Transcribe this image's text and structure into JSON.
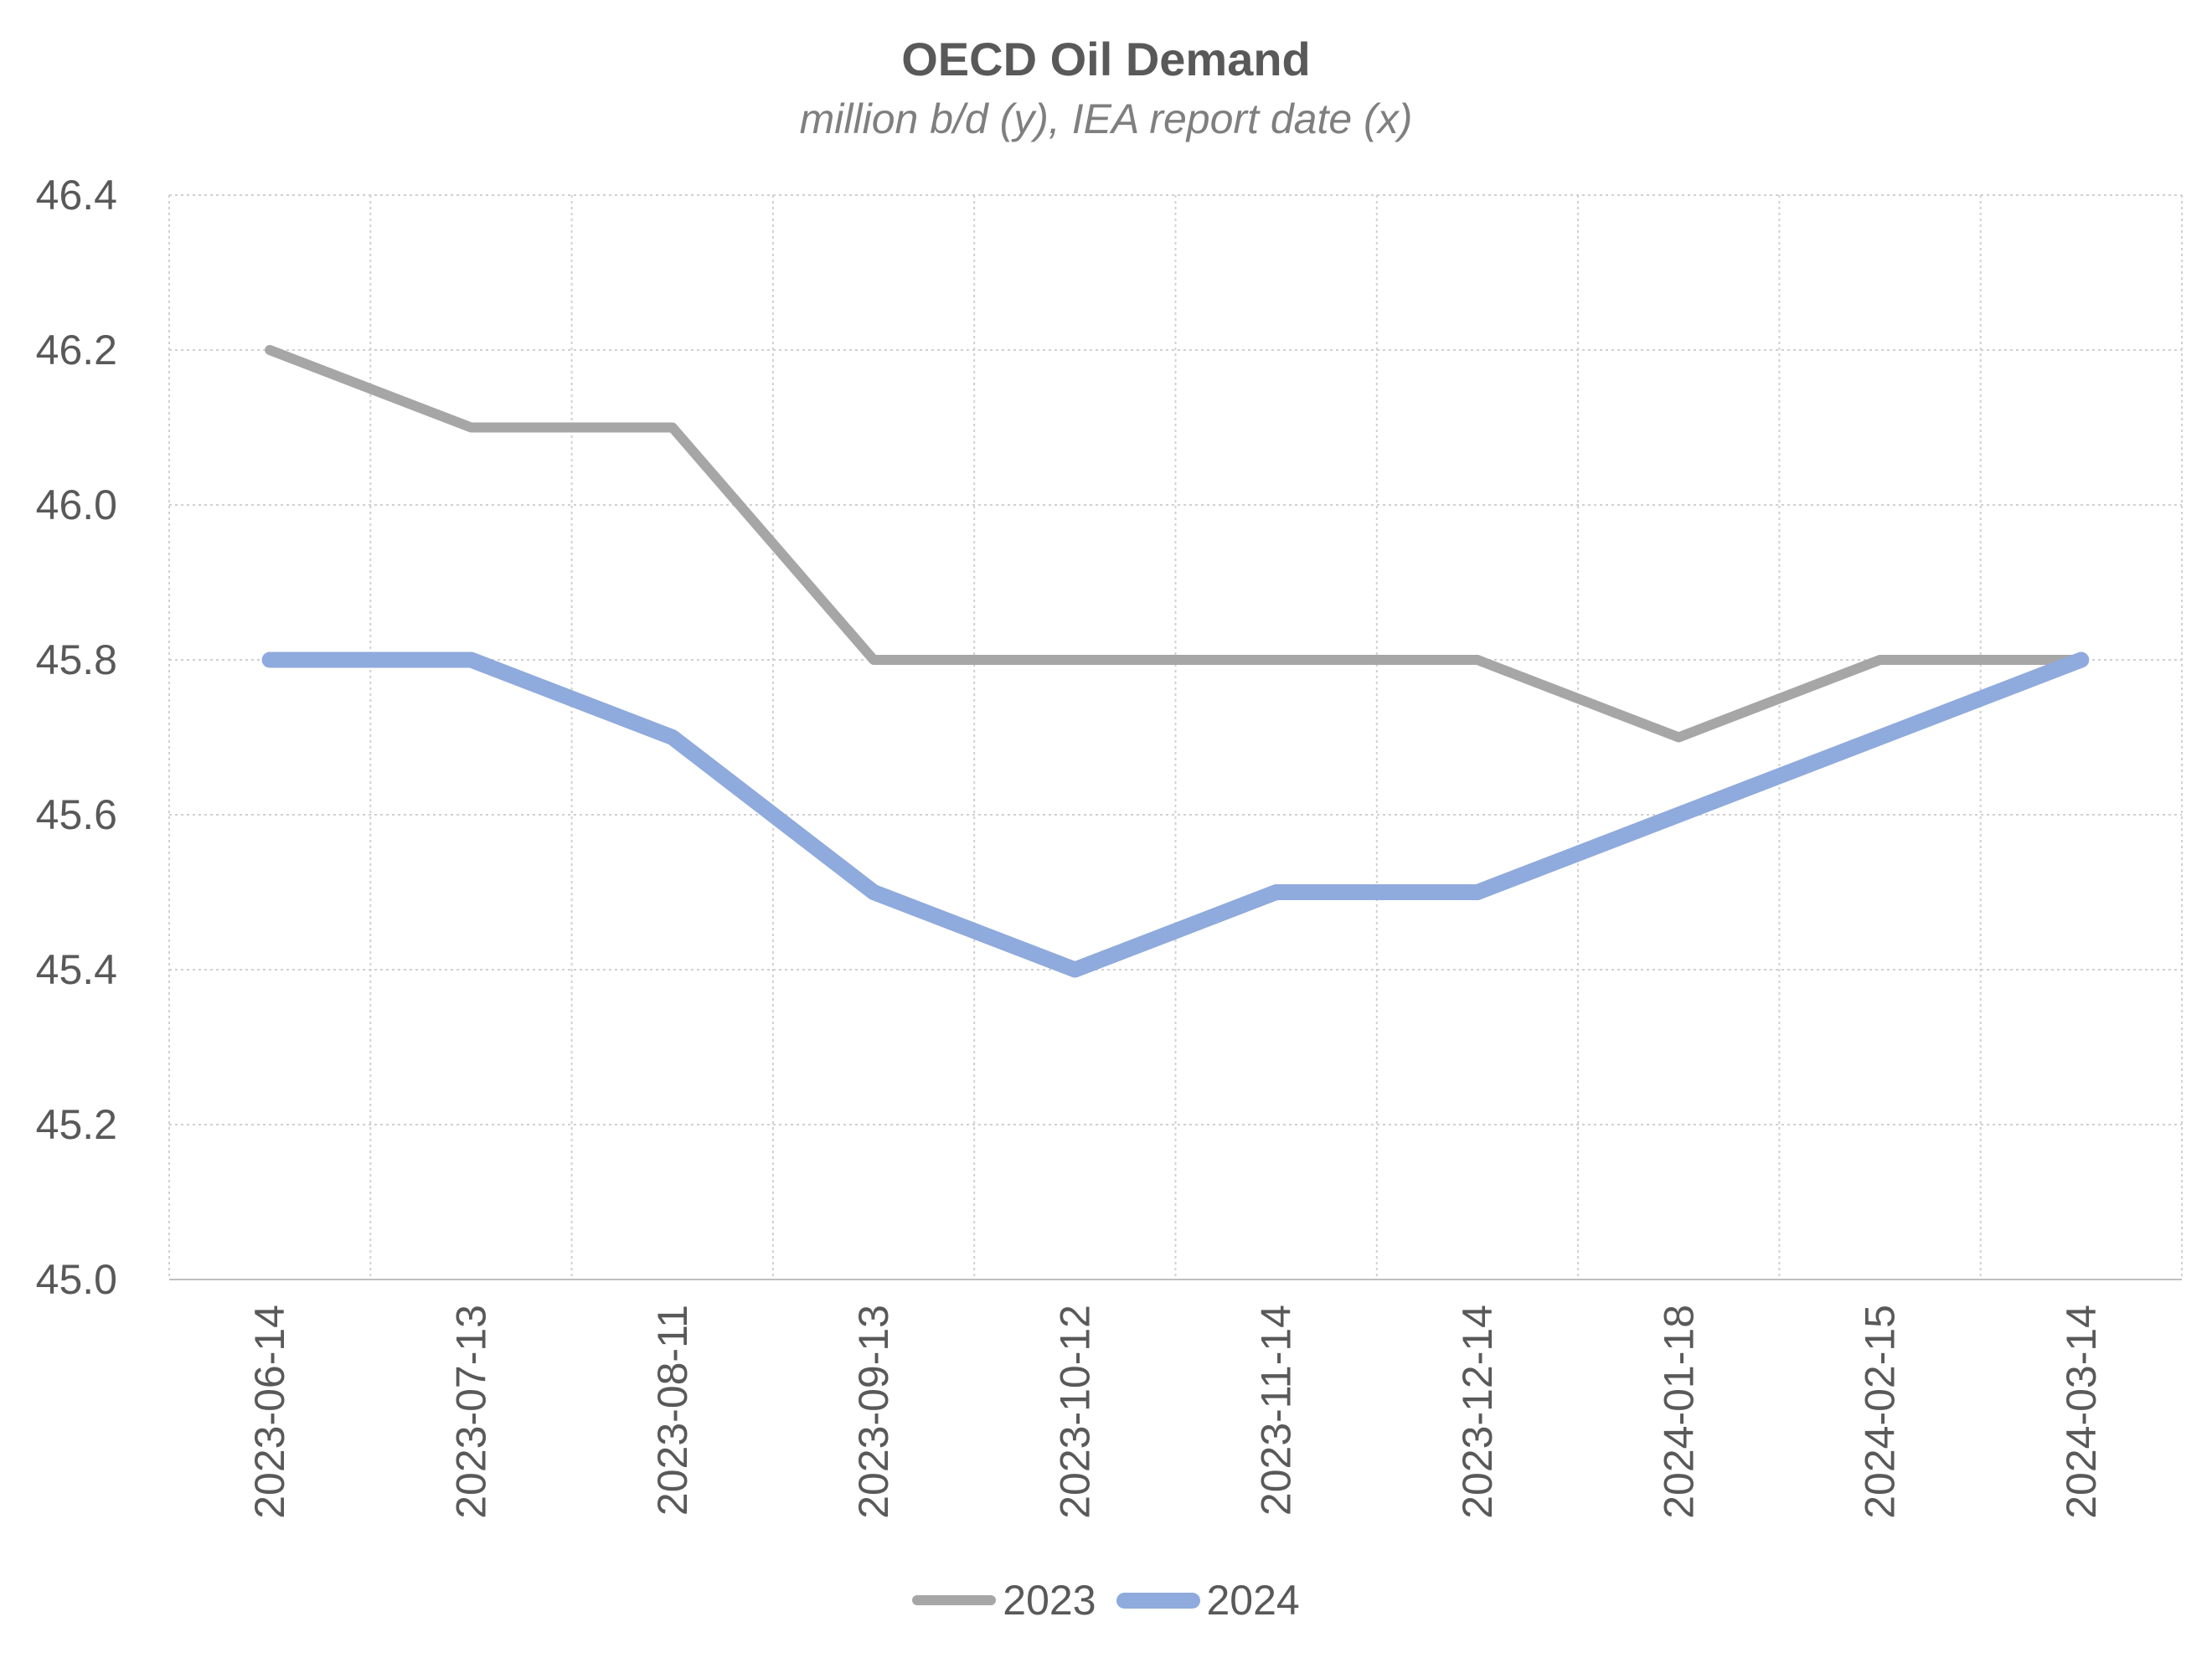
{
  "chart_data": {
    "type": "line",
    "title": "OECD Oil Demand",
    "subtitle": "million b/d (y), IEA report date (x)",
    "xlabel": "",
    "ylabel": "",
    "x": [
      "2023-06-14",
      "2023-07-13",
      "2023-08-11",
      "2023-09-13",
      "2023-10-12",
      "2023-11-14",
      "2023-12-14",
      "2024-01-18",
      "2024-02-15",
      "2024-03-14"
    ],
    "series": [
      {
        "name": "2023",
        "color": "#a6a6a6",
        "values": [
          46.2,
          46.1,
          46.1,
          45.8,
          45.8,
          45.8,
          45.8,
          45.7,
          45.8,
          45.8
        ]
      },
      {
        "name": "2024",
        "color": "#8faadc",
        "values": [
          45.8,
          45.8,
          45.7,
          45.5,
          45.4,
          45.5,
          45.5,
          45.6,
          45.7,
          45.8
        ]
      }
    ],
    "ylim": [
      45.0,
      46.4
    ],
    "yticks": [
      "45.0",
      "45.2",
      "45.4",
      "45.6",
      "45.8",
      "46.0",
      "46.2",
      "46.4"
    ],
    "grid": true,
    "legend_position": "bottom"
  }
}
